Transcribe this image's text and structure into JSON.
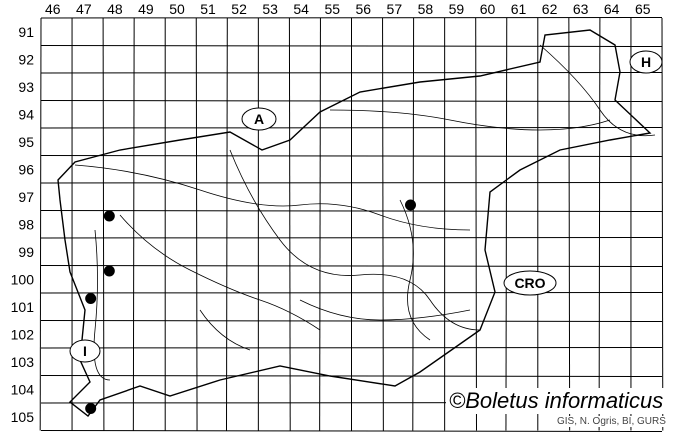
{
  "map": {
    "x_labels": [
      "46",
      "47",
      "48",
      "49",
      "50",
      "51",
      "52",
      "53",
      "54",
      "55",
      "56",
      "57",
      "58",
      "59",
      "60",
      "61",
      "62",
      "63",
      "64",
      "65"
    ],
    "y_labels": [
      "91",
      "92",
      "93",
      "94",
      "95",
      "96",
      "97",
      "98",
      "99",
      "100",
      "101",
      "102",
      "103",
      "104",
      "105"
    ],
    "country_labels": {
      "austria": "A",
      "hungary": "H",
      "croatia": "CRO",
      "italy": "I"
    },
    "records": [
      {
        "col": 48.2,
        "row": 98.2
      },
      {
        "col": 57.9,
        "row": 97.8
      },
      {
        "col": 48.2,
        "row": 100.2
      },
      {
        "col": 47.6,
        "row": 101.2
      },
      {
        "col": 47.6,
        "row": 105.2
      }
    ],
    "credit": "©Boletus informaticus",
    "source": "GIS, N. Ogris, BI, GURS",
    "colors": {
      "grid": "#000000",
      "dot": "#000000",
      "river": "#000000"
    }
  }
}
